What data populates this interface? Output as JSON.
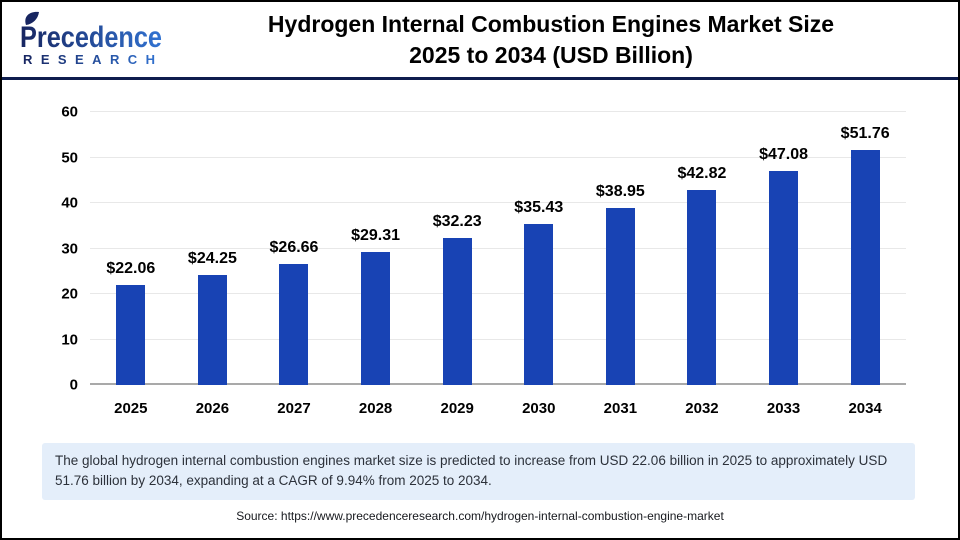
{
  "header": {
    "logo": {
      "name": "Precedence",
      "subtitle": "RESEARCH"
    },
    "title_line1": "Hydrogen Internal Combustion Engines Market Size",
    "title_line2": "2025 to 2034 (USD Billion)"
  },
  "chart_data": {
    "type": "bar",
    "title": "Hydrogen Internal Combustion Engines Market Size 2025 to 2034 (USD Billion)",
    "categories": [
      "2025",
      "2026",
      "2027",
      "2028",
      "2029",
      "2030",
      "2031",
      "2032",
      "2033",
      "2034"
    ],
    "values": [
      22.06,
      24.25,
      26.66,
      29.31,
      32.23,
      35.43,
      38.95,
      42.82,
      47.08,
      51.76
    ],
    "value_labels": [
      "$22.06",
      "$24.25",
      "$26.66",
      "$29.31",
      "$32.23",
      "$35.43",
      "$38.95",
      "$42.82",
      "$47.08",
      "$51.76"
    ],
    "xlabel": "",
    "ylabel": "",
    "ylim": [
      0,
      60
    ],
    "yticks": [
      0,
      10,
      20,
      30,
      40,
      50,
      60
    ],
    "grid": true,
    "legend": "none",
    "bar_color": "#1843b4"
  },
  "note": {
    "text": "The global hydrogen internal combustion engines market size is predicted to increase from USD 22.06 billion in 2025 to approximately USD 51.76 billion by 2034, expanding at a CAGR of 9.94% from 2025 to 2034."
  },
  "source": {
    "text": "Source: https://www.precedenceresearch.com/hydrogen-internal-combustion-engine-market"
  },
  "colors": {
    "bar": "#1843b4",
    "note_background": "#e4eefa",
    "header_rule": "#0f1d4e",
    "gridline": "#e8e8e8",
    "axis_line": "#a9a9a9",
    "logo_gradient_start": "#172560",
    "logo_gradient_end": "#3273d2"
  }
}
